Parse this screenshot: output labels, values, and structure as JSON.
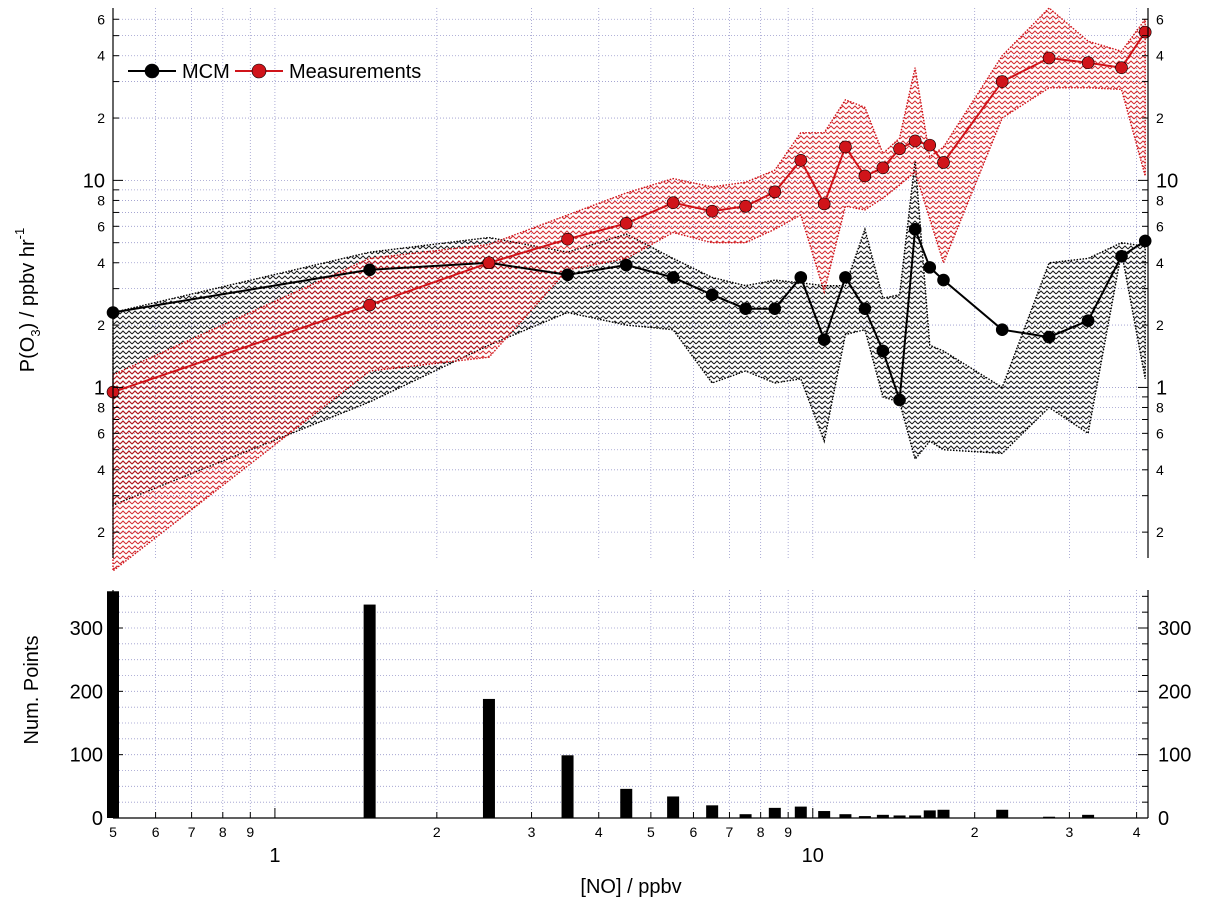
{
  "chart_data": [
    {
      "type": "line",
      "panel": "top",
      "ylabel_main": "P(O",
      "ylabel_sub": "3",
      "ylabel_rest": ") / ppbv hr",
      "ylabel_sup": "-1",
      "x_scale": "log",
      "y_scale": "log",
      "xlim": [
        0.5,
        42
      ],
      "ylim": [
        0.15,
        68
      ],
      "grid": true,
      "legend_position": "top-left",
      "y_major_labels": [
        "1",
        "10"
      ],
      "y_minor_labels": [
        "2",
        "4",
        "6",
        "8",
        "2",
        "4",
        "6",
        "8",
        "2",
        "4",
        "6"
      ],
      "series": [
        {
          "name": "MCM",
          "color": "#000000",
          "x": [
            0.5,
            1.5,
            2.5,
            3.5,
            4.5,
            5.5,
            6.5,
            7.5,
            8.5,
            9.5,
            10.5,
            11.5,
            12.5,
            13.5,
            14.5,
            15.5,
            16.5,
            17.5,
            22.5,
            27.5,
            32.5,
            37.5,
            41.5
          ],
          "y": [
            2.3,
            3.7,
            4.0,
            3.5,
            3.9,
            3.4,
            2.8,
            2.4,
            2.4,
            3.4,
            1.7,
            3.4,
            2.4,
            1.5,
            0.87,
            5.8,
            3.8,
            3.3,
            1.9,
            1.75,
            2.1,
            4.3,
            5.1
          ],
          "band_upper": [
            2.3,
            4.5,
            5.3,
            4.5,
            5.5,
            4.2,
            3.4,
            3.1,
            3.3,
            3.2,
            3.1,
            3.1,
            5.8,
            2.7,
            2.8,
            12.5,
            1.6,
            1.5,
            1.0,
            4.0,
            4.2,
            5.0,
            4.8
          ],
          "band_lower": [
            0.27,
            0.85,
            1.6,
            2.3,
            2.0,
            1.9,
            1.05,
            1.2,
            1.05,
            1.1,
            0.55,
            1.8,
            1.9,
            0.9,
            0.85,
            0.45,
            0.55,
            0.5,
            0.48,
            0.8,
            0.6,
            4.5,
            1.1
          ]
        },
        {
          "name": "Measurements",
          "color": "#d0141a",
          "x": [
            0.5,
            1.5,
            2.5,
            3.5,
            4.5,
            5.5,
            6.5,
            7.5,
            8.5,
            9.5,
            10.5,
            11.5,
            12.5,
            13.5,
            14.5,
            15.5,
            16.5,
            17.5,
            22.5,
            27.5,
            32.5,
            37.5,
            41.5
          ],
          "y": [
            0.95,
            2.5,
            4.0,
            5.2,
            6.2,
            7.8,
            7.1,
            7.5,
            8.8,
            12.5,
            7.7,
            14.5,
            10.5,
            11.5,
            14.2,
            15.5,
            14.8,
            12.2,
            30.0,
            39.0,
            37.0,
            35.0,
            52.0
          ],
          "band_upper": [
            1.15,
            4.2,
            4.9,
            6.8,
            8.7,
            10.2,
            9.3,
            9.8,
            11.2,
            17.0,
            17.0,
            24.5,
            22.5,
            13.5,
            16.0,
            35.0,
            13.0,
            14.5,
            40.0,
            68.0,
            47.0,
            42.0,
            60.0
          ],
          "band_lower": [
            0.13,
            1.2,
            1.4,
            3.7,
            4.2,
            5.6,
            5.0,
            5.0,
            5.8,
            6.8,
            2.9,
            7.5,
            7.2,
            8.2,
            9.5,
            11.0,
            6.5,
            4.0,
            20.0,
            28.0,
            28.0,
            27.5,
            10.5
          ]
        }
      ]
    },
    {
      "type": "bar",
      "panel": "bottom",
      "ylabel": "Num. Points",
      "xlabel": "[NO] / ppbv",
      "x_scale": "log",
      "xlim": [
        0.5,
        42
      ],
      "ylim": [
        0,
        360
      ],
      "y_ticks": [
        0,
        100,
        200,
        300
      ],
      "y_tick_labels": [
        "0",
        "100",
        "200",
        "300"
      ],
      "x_tick_labels_minor": [
        "5",
        "6",
        "7",
        "8",
        "9",
        "2",
        "3",
        "4",
        "5",
        "6",
        "7",
        "8",
        "9",
        "2",
        "3",
        "4"
      ],
      "x_tick_labels_major": [
        "1",
        "10"
      ],
      "x": [
        0.5,
        1.5,
        2.5,
        3.5,
        4.5,
        5.5,
        6.5,
        7.5,
        8.5,
        9.5,
        10.5,
        11.5,
        12.5,
        13.5,
        14.5,
        15.5,
        16.5,
        17.5,
        22.5,
        27.5,
        32.5
      ],
      "values": [
        358,
        337,
        188,
        99,
        46,
        34,
        20,
        6,
        16,
        18,
        11,
        6,
        3,
        5,
        4,
        4,
        12,
        13,
        13,
        2,
        5
      ],
      "color": "#000000"
    }
  ]
}
